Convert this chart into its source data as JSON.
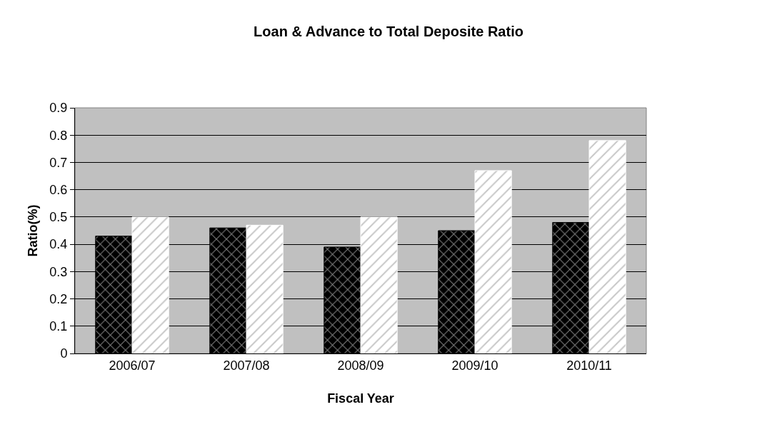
{
  "chart_data": {
    "type": "bar",
    "title": "Loan & Advance to Total Deposite Ratio",
    "xlabel": "Fiscal Year",
    "ylabel": "Ratio(%)",
    "categories": [
      "2006/07",
      "2007/08",
      "2008/09",
      "2009/10",
      "2010/11"
    ],
    "series": [
      {
        "color": "#000000",
        "values": [
          0.43,
          0.46,
          0.39,
          0.45,
          0.48
        ]
      },
      {
        "color": "#ffffff",
        "values": [
          0.5,
          0.47,
          0.5,
          0.67,
          0.78
        ]
      }
    ],
    "ylim": [
      0,
      0.9
    ],
    "yticks": [
      0,
      0.1,
      0.2,
      0.3,
      0.4,
      0.5,
      0.6,
      0.7,
      0.8,
      0.9
    ],
    "grid": "y"
  }
}
